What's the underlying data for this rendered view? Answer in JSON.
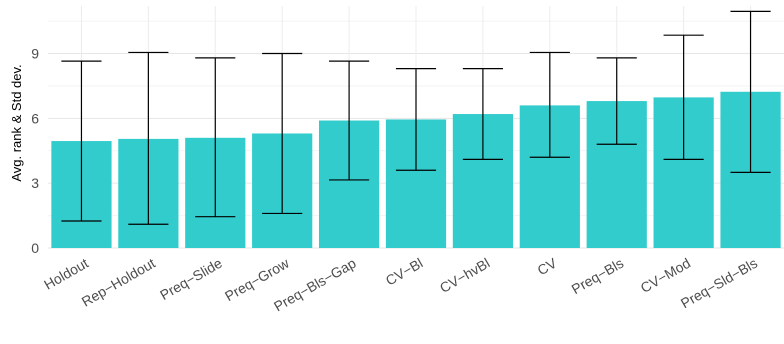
{
  "chart_data": {
    "type": "bar",
    "ylabel": "Avg. rank & Std dev.",
    "xlabel": "",
    "ylim": [
      0,
      11.2
    ],
    "yticks": [
      0,
      3,
      6,
      9
    ],
    "grid": true,
    "bar_color": "#33CCCC",
    "error_bar_color": "#000000",
    "categories": [
      "Holdout",
      "Rep−Holdout",
      "Preq−Slide",
      "Preq−Grow",
      "Preq−Bls−Gap",
      "CV−Bl",
      "CV−hvBl",
      "CV",
      "Preq−Bls",
      "CV−Mod",
      "Preq−Sld−Bls"
    ],
    "values": [
      4.95,
      5.05,
      5.1,
      5.3,
      5.9,
      5.95,
      6.2,
      6.6,
      6.8,
      6.97,
      7.23
    ],
    "error_low": [
      1.25,
      1.1,
      1.45,
      1.6,
      3.15,
      3.6,
      4.1,
      4.2,
      4.8,
      4.1,
      3.5
    ],
    "error_high": [
      8.65,
      9.05,
      8.8,
      9.0,
      8.65,
      8.3,
      8.3,
      9.05,
      8.8,
      9.85,
      10.95
    ]
  }
}
